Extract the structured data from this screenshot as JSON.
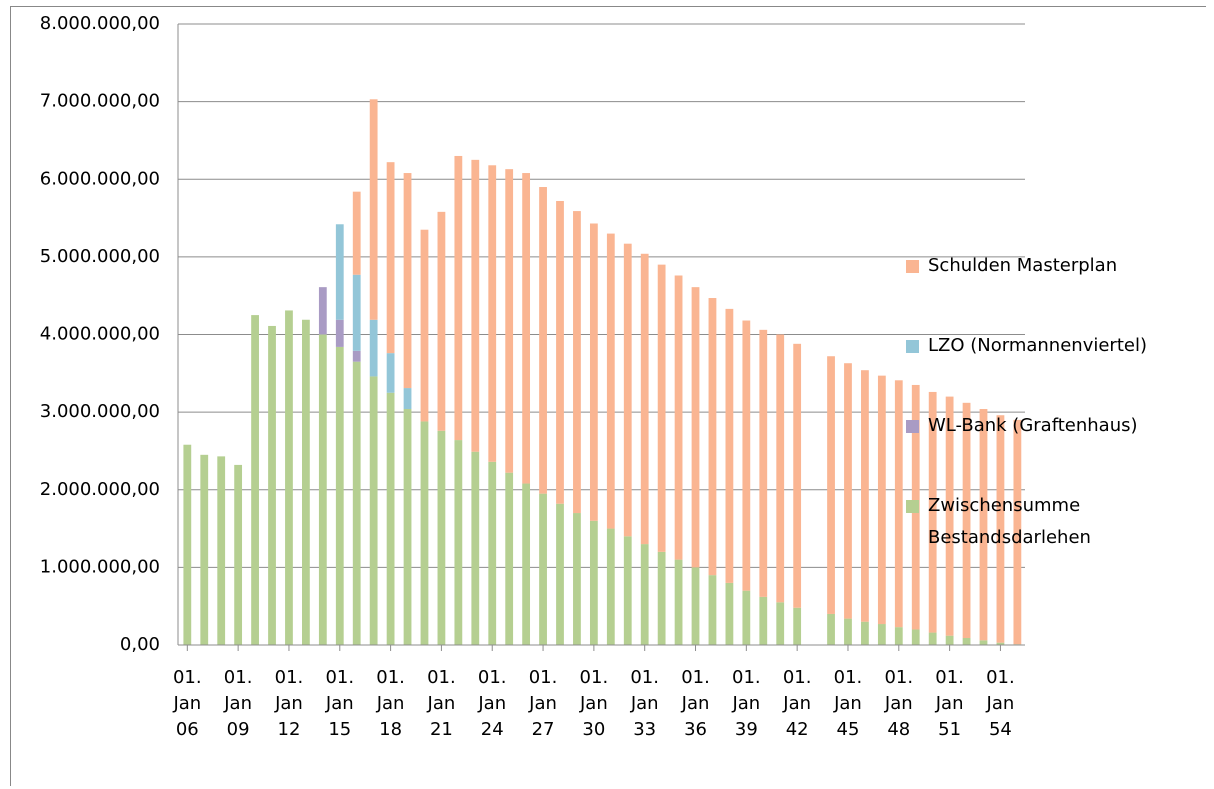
{
  "chart_data": {
    "type": "stacked-bar",
    "categories": [
      "01. Jan 06",
      null,
      null,
      "01. Jan 09",
      null,
      null,
      "01. Jan 12",
      null,
      null,
      "01. Jan 15",
      null,
      null,
      "01. Jan 18",
      null,
      null,
      "01. Jan 21",
      null,
      null,
      "01. Jan 24",
      null,
      null,
      "01. Jan 27",
      null,
      null,
      "01. Jan 30",
      null,
      null,
      "01. Jan 33",
      null,
      null,
      "01. Jan 36",
      null,
      null,
      "01. Jan 39",
      null,
      null,
      "01. Jan 42",
      null,
      null,
      "01. Jan 45",
      null,
      null,
      "01. Jan 48",
      null,
      null,
      "01. Jan 51",
      null,
      null,
      "01. Jan 54",
      null
    ],
    "series": [
      {
        "name": "Zwischensumme Bestandsdarlehen",
        "color": "#b5cf91",
        "values": [
          2580000,
          2450000,
          2430000,
          2320000,
          4250000,
          4110000,
          4310000,
          4190000,
          4000000,
          3840000,
          3650000,
          3460000,
          3250000,
          3040000,
          2880000,
          2760000,
          2640000,
          2490000,
          2360000,
          2220000,
          2080000,
          1950000,
          1820000,
          1700000,
          1600000,
          1500000,
          1400000,
          1300000,
          1200000,
          1100000,
          1000000,
          900000,
          800000,
          700000,
          620000,
          550000,
          480000,
          null,
          400000,
          340000,
          300000,
          270000,
          230000,
          200000,
          160000,
          120000,
          90000,
          60000,
          30000,
          10000
        ]
      },
      {
        "name": "WL-Bank (Graftenhaus)",
        "color": "#a99bc4",
        "values": [
          0,
          0,
          0,
          0,
          0,
          0,
          0,
          0,
          610000,
          350000,
          140000,
          0,
          0,
          0,
          0,
          0,
          0,
          0,
          0,
          0,
          0,
          0,
          0,
          0,
          0,
          0,
          0,
          0,
          0,
          0,
          0,
          0,
          0,
          0,
          0,
          0,
          0,
          null,
          0,
          0,
          0,
          0,
          0,
          0,
          0,
          0,
          0,
          0,
          0,
          0
        ]
      },
      {
        "name": "LZO (Normannenviertel)",
        "color": "#93c6d8",
        "values": [
          0,
          0,
          0,
          0,
          0,
          0,
          0,
          0,
          0,
          1230000,
          980000,
          730000,
          510000,
          270000,
          0,
          0,
          0,
          0,
          0,
          0,
          0,
          0,
          0,
          0,
          0,
          0,
          0,
          0,
          0,
          0,
          0,
          0,
          0,
          0,
          0,
          0,
          0,
          null,
          0,
          0,
          0,
          0,
          0,
          0,
          0,
          0,
          0,
          0,
          0,
          0
        ]
      },
      {
        "name": "Schulden Masterplan",
        "color": "#fab592",
        "values": [
          0,
          0,
          0,
          0,
          0,
          0,
          0,
          0,
          0,
          0,
          1070000,
          2840000,
          2460000,
          2770000,
          2470000,
          2820000,
          3660000,
          3760000,
          3820000,
          3910000,
          4000000,
          3950000,
          3900000,
          3890000,
          3830000,
          3800000,
          3770000,
          3740000,
          3700000,
          3660000,
          3610000,
          3570000,
          3530000,
          3480000,
          3440000,
          3450000,
          3400000,
          null,
          3320000,
          3290000,
          3240000,
          3200000,
          3180000,
          3150000,
          3100000,
          3080000,
          3030000,
          2980000,
          2930000,
          2890000
        ]
      }
    ],
    "ylim": [
      0,
      8000000
    ],
    "yticks": [
      {
        "value": 0,
        "label": "0,00"
      },
      {
        "value": 1000000,
        "label": "1.000.000,00"
      },
      {
        "value": 2000000,
        "label": "2.000.000,00"
      },
      {
        "value": 3000000,
        "label": "3.000.000,00"
      },
      {
        "value": 4000000,
        "label": "4.000.000,00"
      },
      {
        "value": 5000000,
        "label": "5.000.000,00"
      },
      {
        "value": 6000000,
        "label": "6.000.000,00"
      },
      {
        "value": 7000000,
        "label": "7.000.000,00"
      },
      {
        "value": 8000000,
        "label": "8.000.000,00"
      }
    ],
    "grid": true,
    "legend": "right"
  }
}
